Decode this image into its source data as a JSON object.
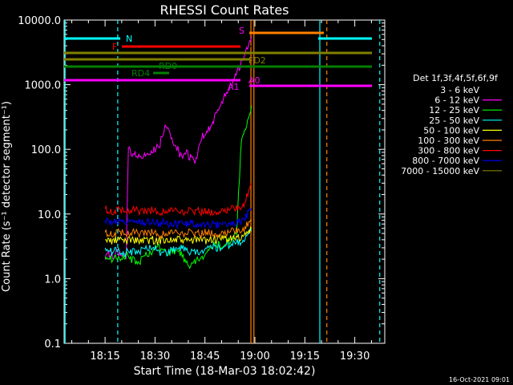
{
  "chart_data": {
    "type": "line",
    "title": "RHESSI Count Rates",
    "xlabel": "Start Time (18-Mar-03 18:02:42)",
    "ylabel": "Count Rate (s⁻¹ detector segment⁻¹)",
    "yscale": "log",
    "ylim": [
      0.1,
      10000
    ],
    "xlim_minutes": [
      2.7,
      44.0
    ],
    "x_ticks": [
      {
        "label": "18:15",
        "min": 15
      },
      {
        "label": "18:30",
        "min": 30
      },
      {
        "label": "18:45",
        "min": 45
      },
      {
        "label": "19:00",
        "min": 60
      },
      {
        "label": "19:15",
        "min": 75
      },
      {
        "label": "19:30",
        "min": 90
      }
    ],
    "y_ticks": [
      "0.1",
      "1.0",
      "10.0",
      "100.0",
      "1000.0",
      "10000.0"
    ],
    "legend_title": "Det 1f,3f,4f,5f,6f,9f",
    "legend_position": "right",
    "series": [
      {
        "name": "3 - 6 keV",
        "color": "#000000",
        "x": [
          15.0,
          16.0,
          17.0,
          18.5,
          20.0,
          21.3,
          22.0,
          24.0,
          26.0,
          28.0,
          30.0,
          31.5,
          33.0,
          34.5,
          36.0,
          38.0,
          39.5,
          41.0,
          42.3,
          43.0,
          44.0,
          45.5,
          47.0,
          48.5,
          50.0,
          52.0,
          53.5,
          55.0,
          56.5,
          57.5,
          59.0
        ],
        "y": [
          1.2,
          1.8,
          2.4,
          2.2,
          2.6,
          2.0,
          160,
          140,
          130,
          145,
          150,
          170,
          260,
          230,
          180,
          120,
          150,
          110,
          100,
          130,
          170,
          200,
          200,
          450,
          800,
          900,
          1100,
          3200,
          2900,
          3800,
          4200
        ]
      },
      {
        "name": "6 - 12 keV",
        "color": "#ff00ff",
        "x": [
          15.0,
          16.0,
          17.0,
          18.5,
          20.0,
          21.3,
          22.0,
          24.0,
          26.0,
          28.0,
          30.0,
          31.5,
          33.0,
          34.5,
          36.0,
          38.0,
          39.5,
          41.0,
          42.3,
          43.0,
          44.0,
          45.5,
          47.0,
          48.5,
          50.0,
          52.0,
          53.5,
          55.0,
          56.5,
          57.5,
          59.0
        ],
        "y": [
          2.0,
          2.5,
          2.2,
          2.6,
          2.4,
          2.3,
          100,
          80,
          75,
          90,
          100,
          120,
          250,
          180,
          120,
          75,
          90,
          70,
          65,
          95,
          150,
          200,
          230,
          350,
          550,
          850,
          1100,
          1800,
          2500,
          3800,
          5200
        ]
      },
      {
        "name": "12 - 25 keV",
        "color": "#00ff00",
        "x": [
          15.0,
          17.0,
          19.0,
          21.0,
          23.0,
          25.0,
          27.0,
          29.0,
          31.0,
          33.0,
          35.0,
          37.0,
          39.0,
          41.0,
          43.0,
          45.0,
          47.0,
          48.5,
          50.0,
          51.5,
          53.0,
          54.5,
          56.0,
          57.5,
          59.0
        ],
        "y": [
          2.2,
          2.0,
          2.1,
          2.3,
          2.0,
          1.8,
          2.2,
          2.5,
          3.2,
          2.6,
          2.5,
          2.8,
          1.8,
          1.6,
          2.0,
          2.2,
          3.0,
          3.5,
          3.2,
          3.5,
          4.0,
          5.0,
          160,
          240,
          420
        ]
      },
      {
        "name": "25 - 50 keV",
        "color": "#00ffff",
        "x": [
          15.0,
          17.0,
          19.0,
          21.0,
          23.0,
          25.0,
          27.0,
          29.0,
          31.0,
          33.0,
          35.0,
          37.0,
          39.0,
          41.0,
          43.0,
          45.0,
          47.0,
          49.0,
          51.0,
          53.0,
          55.0,
          57.0,
          59.0
        ],
        "y": [
          3.0,
          2.6,
          2.8,
          2.5,
          2.6,
          2.7,
          2.8,
          3.0,
          2.6,
          2.5,
          2.7,
          3.0,
          2.8,
          2.6,
          2.5,
          2.7,
          3.1,
          3.0,
          3.2,
          3.4,
          3.6,
          4.2,
          5.5
        ]
      },
      {
        "name": "50 - 100 keV",
        "color": "#ffff00",
        "x": [
          15.0,
          17.0,
          19.0,
          21.0,
          23.0,
          25.0,
          27.0,
          29.0,
          31.0,
          33.0,
          35.0,
          37.0,
          39.0,
          41.0,
          43.0,
          45.0,
          47.0,
          49.0,
          51.0,
          53.0,
          55.0,
          57.0,
          59.0
        ],
        "y": [
          4.0,
          3.8,
          4.0,
          3.9,
          4.1,
          3.8,
          3.9,
          4.0,
          3.8,
          4.1,
          3.9,
          4.0,
          3.8,
          3.9,
          4.0,
          3.9,
          4.1,
          4.0,
          4.2,
          4.1,
          4.3,
          4.6,
          6.0
        ]
      },
      {
        "name": "100 - 300 keV",
        "color": "#ff8000",
        "x": [
          15.0,
          17.0,
          19.0,
          21.0,
          23.0,
          25.0,
          27.0,
          29.0,
          31.0,
          33.0,
          35.0,
          37.0,
          39.0,
          41.0,
          43.0,
          45.0,
          47.0,
          49.0,
          51.0,
          53.0,
          55.0,
          57.0,
          59.0
        ],
        "y": [
          5.2,
          5.0,
          5.2,
          4.9,
          5.3,
          5.0,
          5.1,
          5.2,
          4.9,
          5.0,
          5.2,
          5.1,
          5.0,
          5.2,
          4.9,
          5.1,
          5.3,
          5.0,
          5.2,
          5.3,
          5.6,
          6.2,
          8.0
        ]
      },
      {
        "name": "300 - 800 keV",
        "color": "#ff0000",
        "x": [
          15.0,
          17.0,
          19.0,
          21.0,
          23.0,
          25.0,
          27.0,
          29.0,
          31.0,
          33.0,
          35.0,
          37.0,
          39.0,
          41.0,
          43.0,
          45.0,
          47.0,
          49.0,
          51.0,
          53.0,
          55.0,
          57.0,
          59.0
        ],
        "y": [
          12.0,
          11.0,
          11.5,
          11.0,
          11.8,
          11.2,
          11.0,
          11.5,
          10.8,
          11.2,
          11.5,
          11.0,
          10.8,
          11.2,
          11.0,
          10.8,
          11.0,
          11.3,
          11.5,
          11.8,
          12.5,
          15.0,
          30.0
        ]
      },
      {
        "name": "800 - 7000 keV",
        "color": "#0000ff",
        "x": [
          15.0,
          17.0,
          19.0,
          21.0,
          23.0,
          25.0,
          27.0,
          29.0,
          31.0,
          33.0,
          35.0,
          37.0,
          39.0,
          41.0,
          43.0,
          45.0,
          47.0,
          49.0,
          51.0,
          53.0,
          55.0,
          57.0,
          59.0
        ],
        "y": [
          8.0,
          7.6,
          8.0,
          7.5,
          7.8,
          7.4,
          7.6,
          7.5,
          7.2,
          7.3,
          7.0,
          6.9,
          7.0,
          7.1,
          6.8,
          6.9,
          7.0,
          6.8,
          7.0,
          7.2,
          7.6,
          8.5,
          12.0
        ]
      },
      {
        "name": "7000 - 15000 keV",
        "color": "#808000",
        "x": [],
        "y": []
      }
    ],
    "attenuator_labels": [
      {
        "text": "N",
        "color": "#00ffff"
      },
      {
        "text": "F",
        "color": "#ff0000"
      },
      {
        "text": "S",
        "color": "#ff00ff"
      },
      {
        "text": "FD2",
        "color": "#808000"
      },
      {
        "text": "RD0",
        "color": "#008000"
      },
      {
        "text": "RD4",
        "color": "#008000"
      },
      {
        "text": "A1",
        "color": "#ff00ff"
      },
      {
        "text": "A0",
        "color": "#ff00ff"
      }
    ]
  },
  "footer_date": "16-Oct-2021 09:01"
}
